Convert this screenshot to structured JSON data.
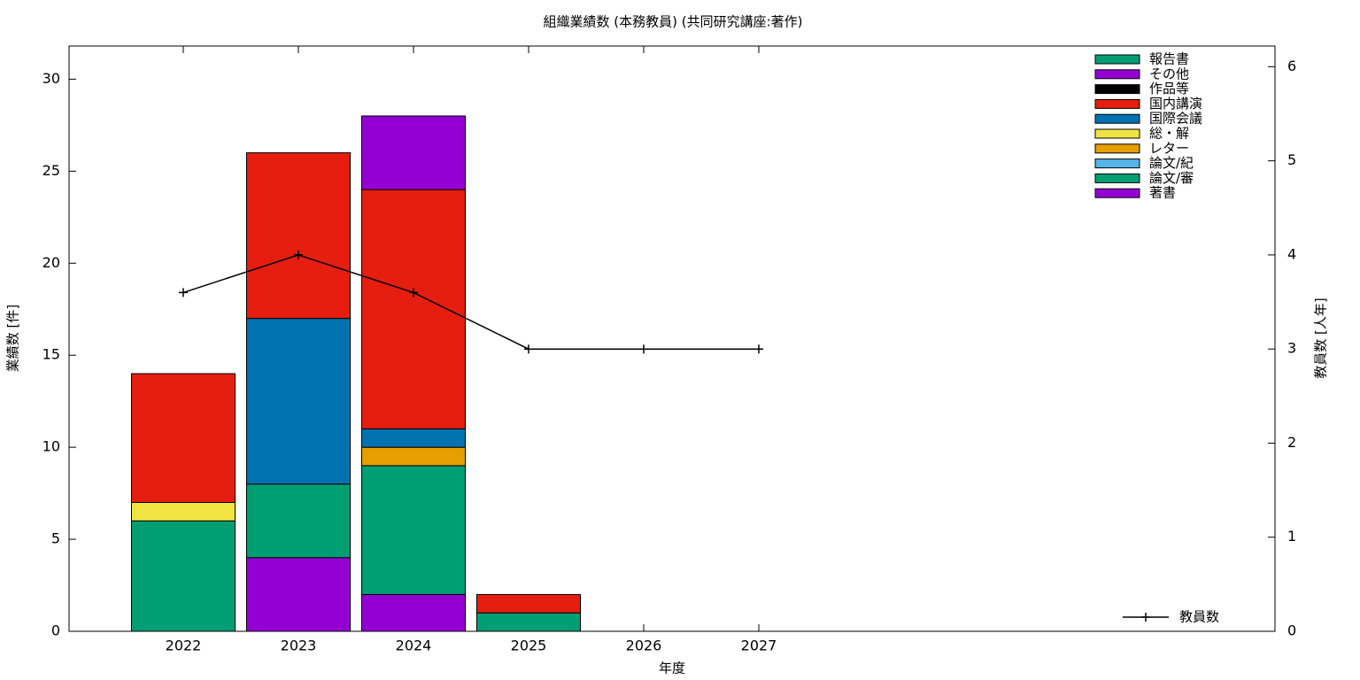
{
  "chart_data": {
    "type": "bar",
    "title": "組織業績数 (本務教員) (共同研究講座:著作)",
    "xlabel": "年度",
    "ylabel": "業績数 [件]",
    "y2label": "教員数 [人年]",
    "categories": [
      "2022",
      "2023",
      "2024",
      "2025",
      "2026",
      "2027"
    ],
    "series": [
      {
        "name": "報告書",
        "color": "#009e73",
        "values": [
          0,
          0,
          0,
          0,
          0,
          0
        ]
      },
      {
        "name": "その他",
        "color": "#9400d3",
        "values": [
          0,
          0,
          4,
          0,
          0,
          0
        ]
      },
      {
        "name": "作品等",
        "color": "#000000",
        "values": [
          0,
          0,
          0,
          0,
          0,
          0
        ]
      },
      {
        "name": "国内講演",
        "color": "#e51e10",
        "values": [
          7,
          9,
          13,
          1,
          0,
          0
        ]
      },
      {
        "name": "国際会議",
        "color": "#0072b2",
        "values": [
          0,
          9,
          1,
          0,
          0,
          0
        ]
      },
      {
        "name": "総・解",
        "color": "#f0e442",
        "values": [
          1,
          0,
          0,
          0,
          0,
          0
        ]
      },
      {
        "name": "レター",
        "color": "#e69f00",
        "values": [
          0,
          0,
          1,
          0,
          0,
          0
        ]
      },
      {
        "name": "論文/紀",
        "color": "#56b4e9",
        "values": [
          0,
          0,
          0,
          0,
          0,
          0
        ]
      },
      {
        "name": "論文/審",
        "color": "#009e73",
        "values": [
          6,
          4,
          7,
          1,
          0,
          0
        ]
      },
      {
        "name": "著書",
        "color": "#9400d3",
        "values": [
          0,
          4,
          2,
          0,
          0,
          0
        ]
      },
      {
        "name": "教員数",
        "color": "#000000",
        "type": "line",
        "axis": "y2",
        "values": [
          3.6,
          4,
          3.6,
          3,
          3,
          3
        ]
      }
    ],
    "ylim": [
      0,
      31.8
    ],
    "yticks": [
      0,
      5,
      10,
      15,
      20,
      25,
      30
    ],
    "y2lim": [
      0,
      6.22
    ],
    "y2ticks": [
      0,
      1,
      2,
      3,
      4,
      5,
      6
    ],
    "legend": "top right",
    "grid": false
  }
}
